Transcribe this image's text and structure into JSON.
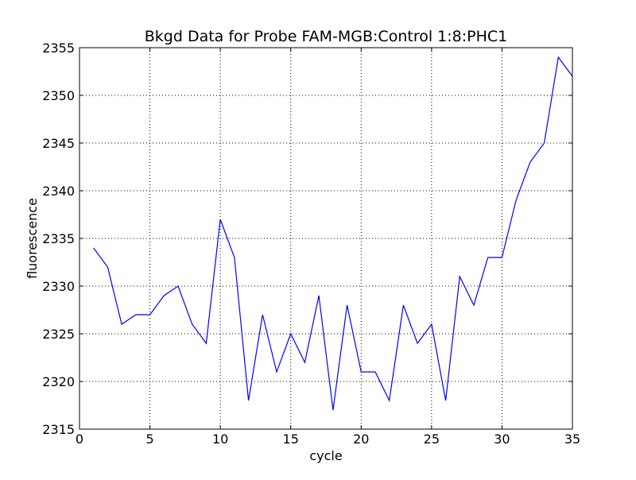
{
  "chart_data": {
    "type": "line",
    "title": "Bkgd Data for Probe FAM-MGB:Control 1:8:PHC1",
    "xlabel": "cycle",
    "ylabel": "fluorescence",
    "xlim": [
      0,
      35
    ],
    "ylim": [
      2315,
      2355
    ],
    "xticks": [
      0,
      5,
      10,
      15,
      20,
      25,
      30,
      35
    ],
    "yticks": [
      2315,
      2320,
      2325,
      2330,
      2335,
      2340,
      2345,
      2350,
      2355
    ],
    "grid": true,
    "grid_style": "dotted",
    "legend": "none",
    "series": [
      {
        "color": "#0000ff",
        "x": [
          1,
          2,
          3,
          4,
          5,
          6,
          7,
          8,
          9,
          10,
          11,
          12,
          13,
          14,
          15,
          16,
          17,
          18,
          19,
          20,
          21,
          22,
          23,
          24,
          25,
          26,
          27,
          28,
          29,
          30,
          31,
          32,
          33,
          34,
          35
        ],
        "values": [
          2334,
          2332,
          2326,
          2327,
          2327,
          2329,
          2330,
          2326,
          2324,
          2337,
          2333,
          2318,
          2327,
          2321,
          2325,
          2322,
          2329,
          2317,
          2328,
          2321,
          2321,
          2318,
          2328,
          2324,
          2326,
          2318,
          2331,
          2328,
          2333,
          2333,
          2339,
          2343,
          2345,
          2354,
          2352
        ]
      }
    ]
  }
}
